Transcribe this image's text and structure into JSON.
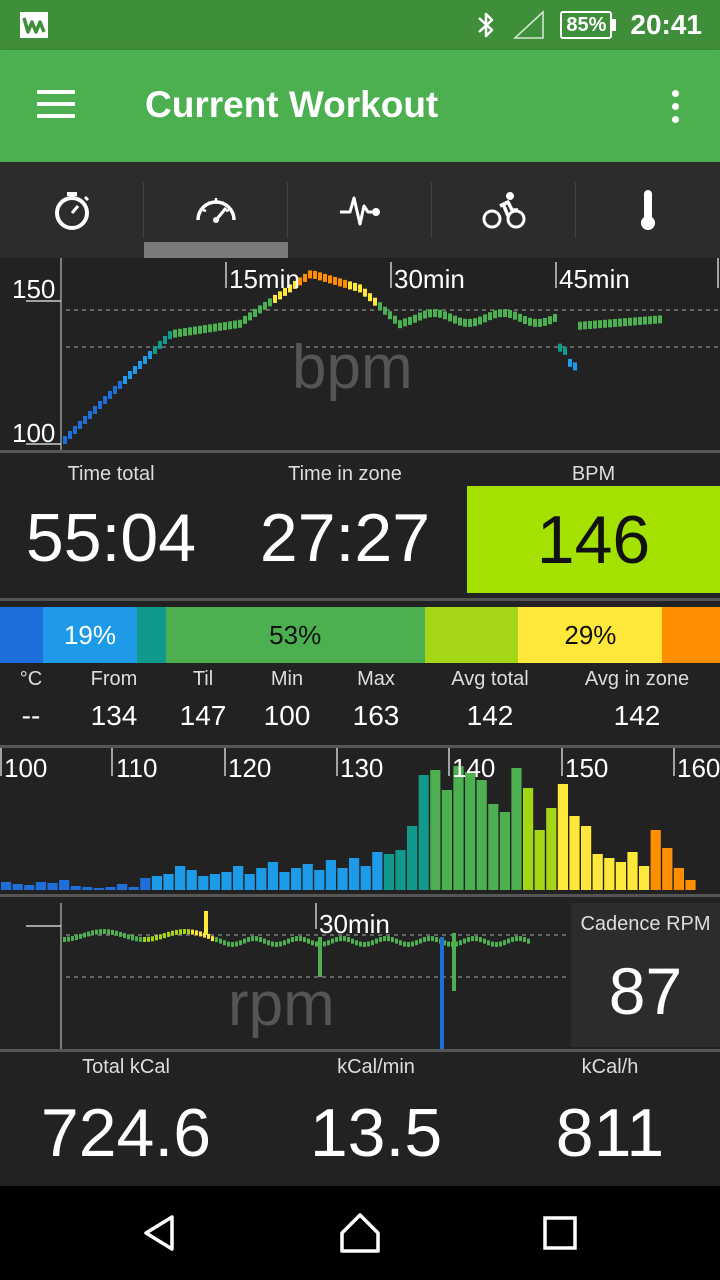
{
  "status_bar": {
    "battery": "85%",
    "time": "20:41"
  },
  "app_bar": {
    "title": "Current Workout"
  },
  "tabs": [
    {
      "icon": "stopwatch-icon"
    },
    {
      "icon": "speedometer-icon"
    },
    {
      "icon": "heartbeat-icon"
    },
    {
      "icon": "cyclist-icon"
    },
    {
      "icon": "thermometer-icon"
    }
  ],
  "hr_chart": {
    "y_ticks": [
      "150",
      "100"
    ],
    "time_markers": [
      "15min",
      "30min",
      "45min"
    ],
    "watermark": "bpm"
  },
  "summary": {
    "time_total_label": "Time total",
    "time_total": "55:04",
    "time_in_zone_label": "Time in zone",
    "time_in_zone": "27:27",
    "bpm_label": "BPM",
    "bpm": "146"
  },
  "zone_bar": {
    "segments": [
      {
        "color": "#1e6fd9",
        "percent": 6
      },
      {
        "color": "#1e9be8",
        "percent": 13,
        "label": "19%"
      },
      {
        "color": "#11998e",
        "percent": 4
      },
      {
        "color": "#4caf50",
        "percent": 36,
        "label": "53%"
      },
      {
        "color": "#a4d615",
        "percent": 13
      },
      {
        "color": "#ffe83a",
        "percent": 20,
        "label": "29%"
      },
      {
        "color": "#ff8f00",
        "percent": 8
      }
    ]
  },
  "stats": {
    "temp_label": "°C",
    "temp": "--",
    "from_label": "From",
    "from": "134",
    "til_label": "Til",
    "til": "147",
    "min_label": "Min",
    "min": "100",
    "max_label": "Max",
    "max": "163",
    "avg_total_label": "Avg total",
    "avg_total": "142",
    "avg_in_zone_label": "Avg in zone",
    "avg_in_zone": "142"
  },
  "histogram": {
    "tick_labels": [
      "100",
      "110",
      "120",
      "130",
      "140",
      "150",
      "160"
    ]
  },
  "cadence_chart": {
    "time_markers": [
      "30min"
    ],
    "watermark": "rpm"
  },
  "cadence": {
    "label": "Cadence RPM",
    "value": "87"
  },
  "calories": {
    "total_label": "Total kCal",
    "total": "724.6",
    "per_min_label": "kCal/min",
    "per_min": "13.5",
    "per_hour_label": "kCal/h",
    "per_hour": "811"
  }
}
